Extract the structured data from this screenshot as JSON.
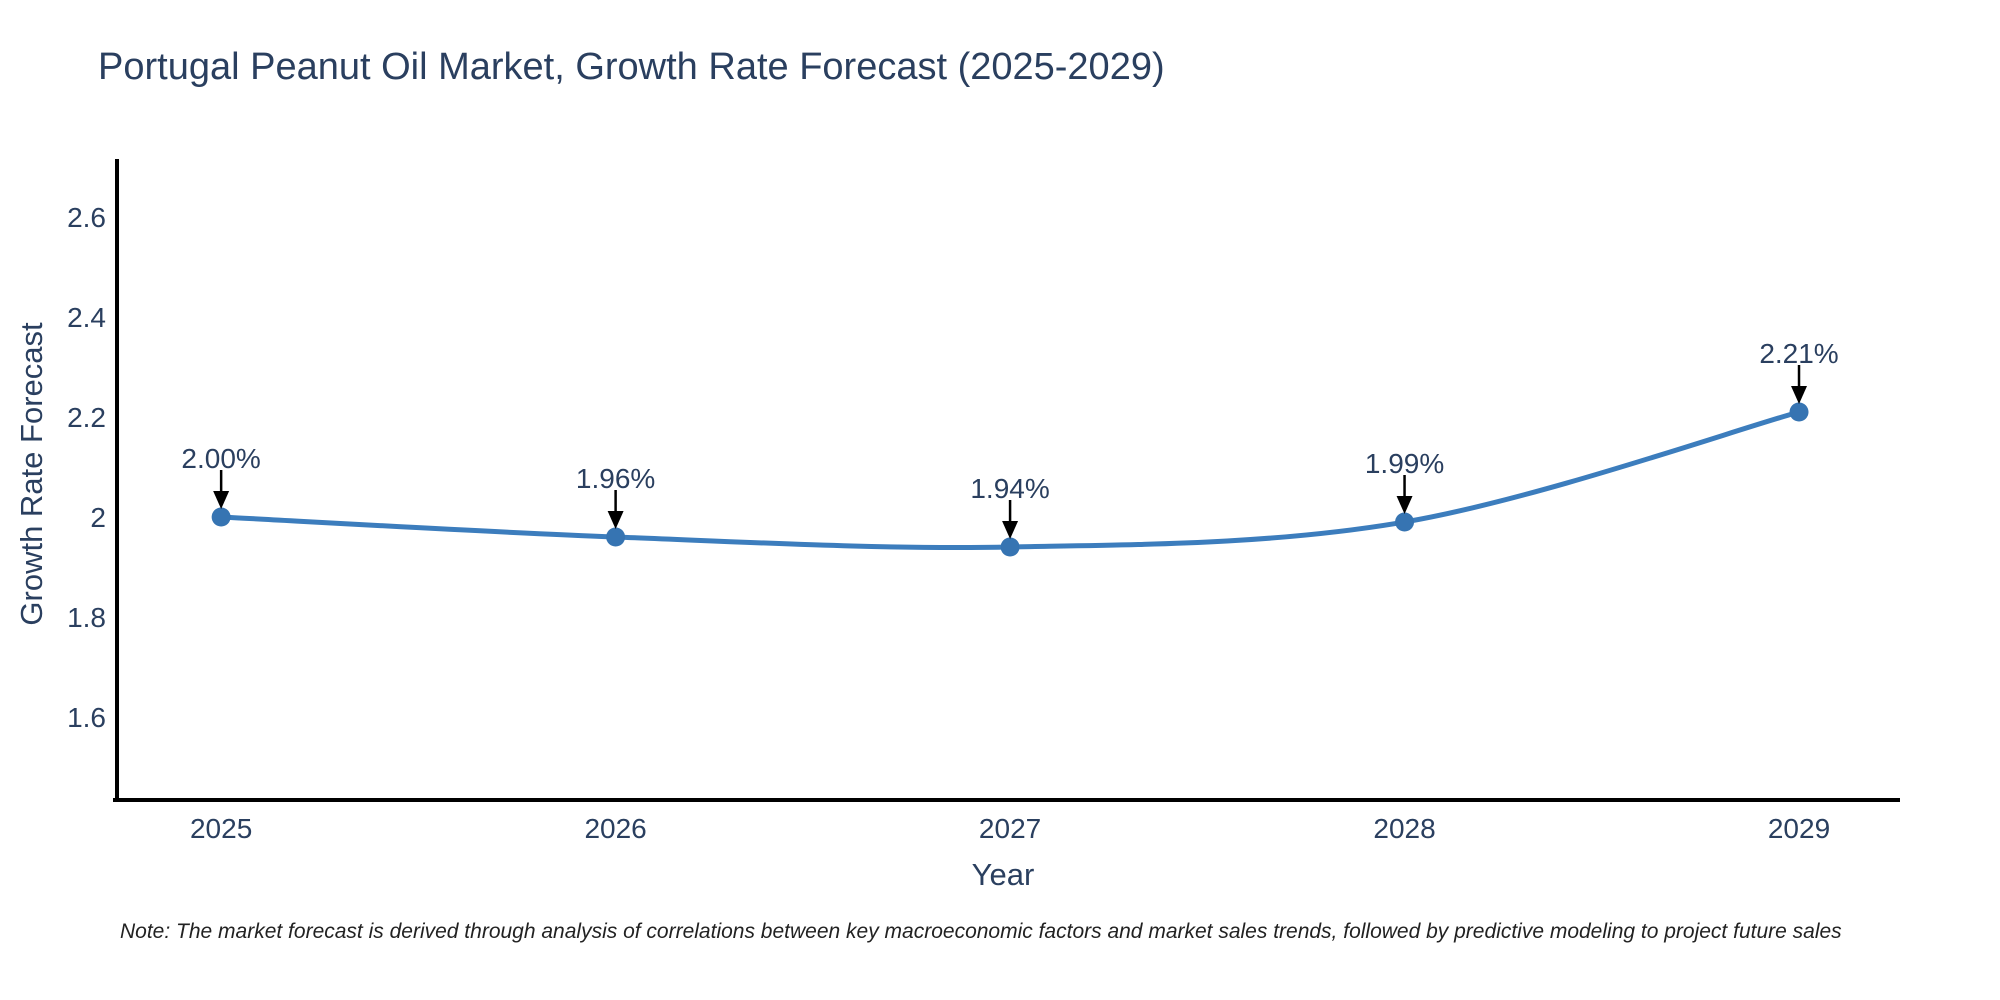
{
  "title": "Portugal Peanut Oil Market, Growth Rate Forecast (2025-2029)",
  "note": "Note: The market forecast is derived through analysis of correlations between key macroeconomic factors and market sales trends, followed by predictive modeling to project future sales",
  "chart_data": {
    "type": "line",
    "title": "Portugal Peanut Oil Market, Growth Rate Forecast (2025-2029)",
    "xlabel": "Year",
    "ylabel": "Growth Rate Forecast",
    "x": [
      2025,
      2026,
      2027,
      2028,
      2029
    ],
    "values": [
      2.0,
      1.96,
      1.94,
      1.99,
      2.21
    ],
    "point_labels": [
      "2.00%",
      "1.96%",
      "1.94%",
      "1.99%",
      "2.21%"
    ],
    "x_tick_labels": [
      "2025",
      "2026",
      "2027",
      "2028",
      "2029"
    ],
    "y_tick_values": [
      1.6,
      1.8,
      2.0,
      2.2,
      2.4,
      2.6
    ],
    "y_tick_labels": [
      "1.6",
      "1.8",
      "2",
      "2.2",
      "2.4",
      "2.6"
    ],
    "xlim": [
      2024.736,
      2029.256
    ],
    "ylim": [
      1.434,
      2.716
    ],
    "grid": false,
    "legend_position": "none",
    "line_shape": "spline",
    "colors": {
      "line": "#3c7dbd",
      "marker": "#3674b2",
      "axis": "#000000",
      "text": "#2a3f5f",
      "annotation_arrow": "#000000",
      "background": "#ffffff"
    }
  }
}
